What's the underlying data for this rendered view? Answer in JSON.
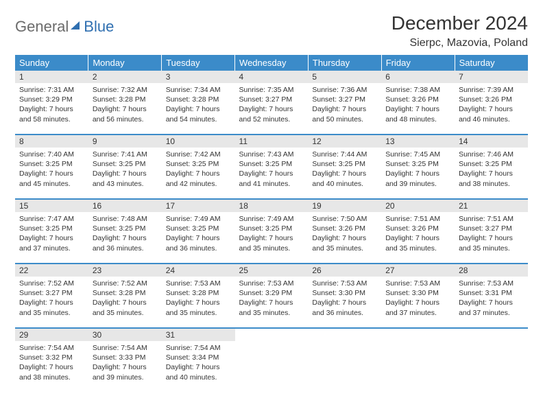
{
  "logo": {
    "general": "General",
    "blue": "Blue"
  },
  "title": "December 2024",
  "location": "Sierpc, Mazovia, Poland",
  "colors": {
    "header_bg": "#3b8bc9",
    "header_text": "#ffffff",
    "daynum_bg": "#e7e7e7",
    "border": "#3b8bc9",
    "logo_gray": "#6b6b6b",
    "logo_blue": "#2f6fb0"
  },
  "weekdays": [
    "Sunday",
    "Monday",
    "Tuesday",
    "Wednesday",
    "Thursday",
    "Friday",
    "Saturday"
  ],
  "weeks": [
    [
      {
        "n": "1",
        "sr": "7:31 AM",
        "ss": "3:29 PM",
        "d": "7 hours and 58 minutes."
      },
      {
        "n": "2",
        "sr": "7:32 AM",
        "ss": "3:28 PM",
        "d": "7 hours and 56 minutes."
      },
      {
        "n": "3",
        "sr": "7:34 AM",
        "ss": "3:28 PM",
        "d": "7 hours and 54 minutes."
      },
      {
        "n": "4",
        "sr": "7:35 AM",
        "ss": "3:27 PM",
        "d": "7 hours and 52 minutes."
      },
      {
        "n": "5",
        "sr": "7:36 AM",
        "ss": "3:27 PM",
        "d": "7 hours and 50 minutes."
      },
      {
        "n": "6",
        "sr": "7:38 AM",
        "ss": "3:26 PM",
        "d": "7 hours and 48 minutes."
      },
      {
        "n": "7",
        "sr": "7:39 AM",
        "ss": "3:26 PM",
        "d": "7 hours and 46 minutes."
      }
    ],
    [
      {
        "n": "8",
        "sr": "7:40 AM",
        "ss": "3:25 PM",
        "d": "7 hours and 45 minutes."
      },
      {
        "n": "9",
        "sr": "7:41 AM",
        "ss": "3:25 PM",
        "d": "7 hours and 43 minutes."
      },
      {
        "n": "10",
        "sr": "7:42 AM",
        "ss": "3:25 PM",
        "d": "7 hours and 42 minutes."
      },
      {
        "n": "11",
        "sr": "7:43 AM",
        "ss": "3:25 PM",
        "d": "7 hours and 41 minutes."
      },
      {
        "n": "12",
        "sr": "7:44 AM",
        "ss": "3:25 PM",
        "d": "7 hours and 40 minutes."
      },
      {
        "n": "13",
        "sr": "7:45 AM",
        "ss": "3:25 PM",
        "d": "7 hours and 39 minutes."
      },
      {
        "n": "14",
        "sr": "7:46 AM",
        "ss": "3:25 PM",
        "d": "7 hours and 38 minutes."
      }
    ],
    [
      {
        "n": "15",
        "sr": "7:47 AM",
        "ss": "3:25 PM",
        "d": "7 hours and 37 minutes."
      },
      {
        "n": "16",
        "sr": "7:48 AM",
        "ss": "3:25 PM",
        "d": "7 hours and 36 minutes."
      },
      {
        "n": "17",
        "sr": "7:49 AM",
        "ss": "3:25 PM",
        "d": "7 hours and 36 minutes."
      },
      {
        "n": "18",
        "sr": "7:49 AM",
        "ss": "3:25 PM",
        "d": "7 hours and 35 minutes."
      },
      {
        "n": "19",
        "sr": "7:50 AM",
        "ss": "3:26 PM",
        "d": "7 hours and 35 minutes."
      },
      {
        "n": "20",
        "sr": "7:51 AM",
        "ss": "3:26 PM",
        "d": "7 hours and 35 minutes."
      },
      {
        "n": "21",
        "sr": "7:51 AM",
        "ss": "3:27 PM",
        "d": "7 hours and 35 minutes."
      }
    ],
    [
      {
        "n": "22",
        "sr": "7:52 AM",
        "ss": "3:27 PM",
        "d": "7 hours and 35 minutes."
      },
      {
        "n": "23",
        "sr": "7:52 AM",
        "ss": "3:28 PM",
        "d": "7 hours and 35 minutes."
      },
      {
        "n": "24",
        "sr": "7:53 AM",
        "ss": "3:28 PM",
        "d": "7 hours and 35 minutes."
      },
      {
        "n": "25",
        "sr": "7:53 AM",
        "ss": "3:29 PM",
        "d": "7 hours and 35 minutes."
      },
      {
        "n": "26",
        "sr": "7:53 AM",
        "ss": "3:30 PM",
        "d": "7 hours and 36 minutes."
      },
      {
        "n": "27",
        "sr": "7:53 AM",
        "ss": "3:30 PM",
        "d": "7 hours and 37 minutes."
      },
      {
        "n": "28",
        "sr": "7:53 AM",
        "ss": "3:31 PM",
        "d": "7 hours and 37 minutes."
      }
    ],
    [
      {
        "n": "29",
        "sr": "7:54 AM",
        "ss": "3:32 PM",
        "d": "7 hours and 38 minutes."
      },
      {
        "n": "30",
        "sr": "7:54 AM",
        "ss": "3:33 PM",
        "d": "7 hours and 39 minutes."
      },
      {
        "n": "31",
        "sr": "7:54 AM",
        "ss": "3:34 PM",
        "d": "7 hours and 40 minutes."
      },
      null,
      null,
      null,
      null
    ]
  ],
  "labels": {
    "sunrise": "Sunrise:",
    "sunset": "Sunset:",
    "daylight": "Daylight:"
  }
}
